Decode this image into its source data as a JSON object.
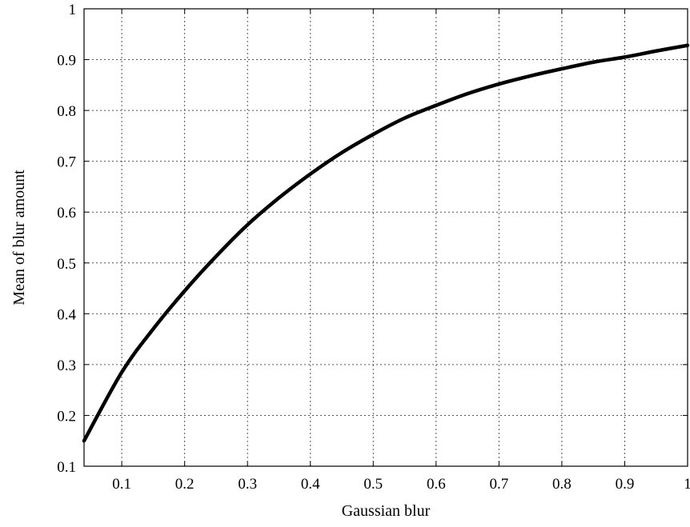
{
  "chart_data": {
    "type": "line",
    "title": "",
    "xlabel": "Gaussian blur",
    "ylabel": "Mean of blur amount",
    "xlim": [
      0.04,
      1.0
    ],
    "ylim": [
      0.1,
      1.0
    ],
    "grid": true,
    "legend": "none",
    "x_ticks": [
      0.1,
      0.2,
      0.3,
      0.4,
      0.5,
      0.6,
      0.7,
      0.8,
      0.9,
      1.0
    ],
    "x_tick_labels": [
      "0.1",
      "0.2",
      "0.3",
      "0.4",
      "0.5",
      "0.6",
      "0.7",
      "0.8",
      "0.9",
      "1"
    ],
    "y_ticks": [
      0.1,
      0.2,
      0.3,
      0.4,
      0.5,
      0.6,
      0.7,
      0.8,
      0.9,
      1.0
    ],
    "y_tick_labels": [
      "0.1",
      "0.2",
      "0.3",
      "0.4",
      "0.5",
      "0.6",
      "0.7",
      "0.8",
      "0.9",
      "1"
    ],
    "series": [
      {
        "color": "#000000",
        "x": [
          0.04,
          0.1,
          0.15,
          0.2,
          0.25,
          0.3,
          0.35,
          0.4,
          0.45,
          0.5,
          0.55,
          0.6,
          0.65,
          0.7,
          0.75,
          0.8,
          0.85,
          0.9,
          0.95,
          1.0
        ],
        "y": [
          0.15,
          0.285,
          0.37,
          0.445,
          0.513,
          0.575,
          0.628,
          0.675,
          0.717,
          0.753,
          0.785,
          0.81,
          0.833,
          0.852,
          0.868,
          0.882,
          0.895,
          0.905,
          0.917,
          0.928
        ]
      }
    ]
  }
}
